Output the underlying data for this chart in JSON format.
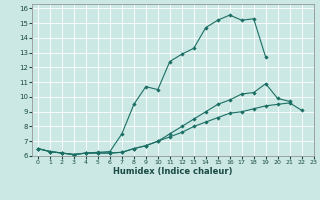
{
  "title": "",
  "xlabel": "Humidex (Indice chaleur)",
  "background_color": "#cce8e4",
  "grid_color": "#ffffff",
  "line_color": "#1a6e64",
  "xlim": [
    -0.5,
    23
  ],
  "ylim": [
    6,
    16.3
  ],
  "xticks": [
    0,
    1,
    2,
    3,
    4,
    5,
    6,
    7,
    8,
    9,
    10,
    11,
    12,
    13,
    14,
    15,
    16,
    17,
    18,
    19,
    20,
    21,
    22,
    23
  ],
  "yticks": [
    6,
    7,
    8,
    9,
    10,
    11,
    12,
    13,
    14,
    15,
    16
  ],
  "line1_x": [
    0,
    1,
    2,
    3,
    4,
    5,
    6,
    7,
    8,
    9,
    10,
    11,
    12,
    13,
    14,
    15,
    16,
    17,
    18,
    19,
    20
  ],
  "line1_y": [
    6.5,
    6.3,
    6.2,
    6.1,
    6.2,
    6.25,
    6.3,
    7.5,
    9.5,
    10.7,
    10.5,
    12.4,
    12.9,
    13.3,
    14.7,
    15.2,
    15.55,
    15.2,
    15.3,
    12.7,
    null
  ],
  "line2_x": [
    0,
    1,
    2,
    3,
    4,
    5,
    6,
    7,
    8,
    9,
    10,
    11,
    12,
    13,
    14,
    15,
    16,
    17,
    18,
    19,
    20,
    21,
    22
  ],
  "line2_y": [
    6.5,
    6.3,
    6.2,
    6.1,
    6.2,
    6.2,
    6.2,
    6.25,
    6.5,
    6.7,
    7.0,
    7.5,
    8.0,
    8.5,
    9.0,
    9.5,
    9.8,
    10.2,
    10.3,
    10.9,
    9.9,
    9.7,
    null
  ],
  "line3_x": [
    0,
    1,
    2,
    3,
    4,
    5,
    6,
    7,
    8,
    9,
    10,
    11,
    12,
    13,
    14,
    15,
    16,
    17,
    18,
    19,
    20,
    21,
    22,
    23
  ],
  "line3_y": [
    6.5,
    6.3,
    6.2,
    6.1,
    6.2,
    6.2,
    6.2,
    6.25,
    6.5,
    6.7,
    7.0,
    7.3,
    7.6,
    8.0,
    8.3,
    8.6,
    8.9,
    9.0,
    9.2,
    9.4,
    9.5,
    9.6,
    9.1,
    null
  ]
}
